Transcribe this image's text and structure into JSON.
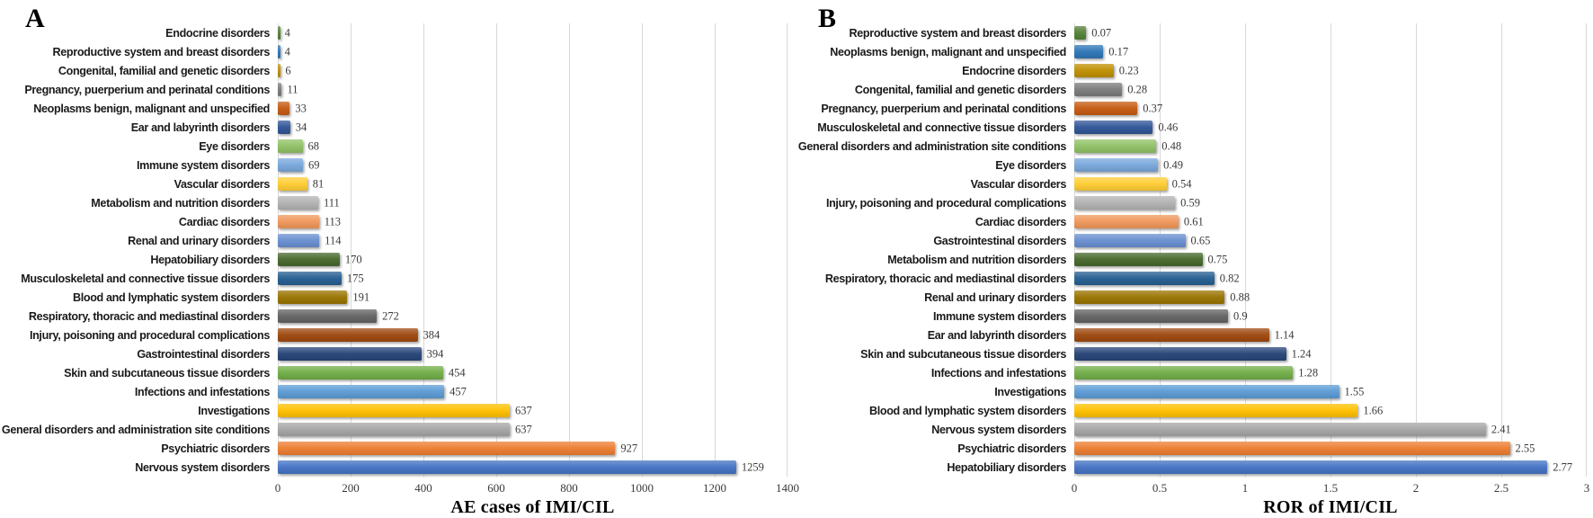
{
  "chart_data": [
    {
      "type": "bar",
      "orientation": "horizontal",
      "panel_letter": "A",
      "title": "",
      "xlabel": "AE cases of IMI/CIL",
      "ylabel": "",
      "xlim": [
        0,
        1400
      ],
      "xticks": [
        "0",
        "200",
        "400",
        "600",
        "800",
        "1000",
        "1200",
        "1400"
      ],
      "grid": "vertical",
      "legend": "none",
      "bars": [
        {
          "label": "Endocrine disorders",
          "value": 4,
          "value_label": "4",
          "color": "#538135"
        },
        {
          "label": "Reproductive system and breast disorders",
          "value": 4,
          "value_label": "4",
          "color": "#2E75B6"
        },
        {
          "label": "Congenital, familial and genetic disorders",
          "value": 6,
          "value_label": "6",
          "color": "#BF8F00"
        },
        {
          "label": "Pregnancy, puerperium and perinatal conditions",
          "value": 11,
          "value_label": "11",
          "color": "#7B7B7B"
        },
        {
          "label": "Neoplasms benign, malignant and unspecified",
          "value": 33,
          "value_label": "33",
          "color": "#C55A11"
        },
        {
          "label": "Ear and labyrinth disorders",
          "value": 34,
          "value_label": "34",
          "color": "#2F5597"
        },
        {
          "label": "Eye disorders",
          "value": 68,
          "value_label": "68",
          "color": "#8FC164"
        },
        {
          "label": "Immune system disorders",
          "value": 69,
          "value_label": "69",
          "color": "#78A7DB"
        },
        {
          "label": "Vascular disorders",
          "value": 81,
          "value_label": "81",
          "color": "#FFCD33"
        },
        {
          "label": "Metabolism and nutrition disorders",
          "value": 111,
          "value_label": "111",
          "color": "#B2B2B2"
        },
        {
          "label": "Cardiac disorders",
          "value": 113,
          "value_label": "113",
          "color": "#F0975A"
        },
        {
          "label": "Renal and urinary disorders",
          "value": 114,
          "value_label": "114",
          "color": "#698ED0"
        },
        {
          "label": "Hepatobiliary disorders",
          "value": 170,
          "value_label": "170",
          "color": "#47682C"
        },
        {
          "label": "Musculoskeletal and connective tissue disorders",
          "value": 175,
          "value_label": "175",
          "color": "#255E91"
        },
        {
          "label": "Blood and lymphatic system disorders",
          "value": 191,
          "value_label": "191",
          "color": "#997300"
        },
        {
          "label": "Respiratory, thoracic and mediastinal disorders",
          "value": 272,
          "value_label": "272",
          "color": "#636363"
        },
        {
          "label": "Injury, poisoning and procedural complications",
          "value": 384,
          "value_label": "384",
          "color": "#9E480E"
        },
        {
          "label": "Gastrointestinal disorders",
          "value": 394,
          "value_label": "394",
          "color": "#264478"
        },
        {
          "label": "Skin and subcutaneous tissue disorders",
          "value": 454,
          "value_label": "454",
          "color": "#70AD47"
        },
        {
          "label": "Infections and infestations",
          "value": 457,
          "value_label": "457",
          "color": "#5B9BD5"
        },
        {
          "label": "Investigations",
          "value": 637,
          "value_label": "637",
          "color": "#FFC000"
        },
        {
          "label": "General disorders and administration site conditions",
          "value": 637,
          "value_label": "637",
          "color": "#A5A5A5"
        },
        {
          "label": "Psychiatric disorders",
          "value": 927,
          "value_label": "927",
          "color": "#ED7D31"
        },
        {
          "label": "Nervous system disorders",
          "value": 1259,
          "value_label": "1259",
          "color": "#4472C4"
        }
      ]
    },
    {
      "type": "bar",
      "orientation": "horizontal",
      "panel_letter": "B",
      "title": "",
      "xlabel": "ROR of IMI/CIL",
      "ylabel": "",
      "xlim": [
        0,
        3
      ],
      "xticks": [
        "0",
        "0.5",
        "1",
        "1.5",
        "2",
        "2.5",
        "3"
      ],
      "grid": "vertical",
      "legend": "none",
      "bars": [
        {
          "label": "Reproductive system and breast disorders",
          "value": 0.07,
          "value_label": "0.07",
          "color": "#538135"
        },
        {
          "label": "Neoplasms benign, malignant and unspecified",
          "value": 0.17,
          "value_label": "0.17",
          "color": "#2E75B6"
        },
        {
          "label": "Endocrine disorders",
          "value": 0.23,
          "value_label": "0.23",
          "color": "#BF8F00"
        },
        {
          "label": "Congenital, familial and genetic disorders",
          "value": 0.28,
          "value_label": "0.28",
          "color": "#7B7B7B"
        },
        {
          "label": "Pregnancy, puerperium and perinatal conditions",
          "value": 0.37,
          "value_label": "0.37",
          "color": "#C55A11"
        },
        {
          "label": "Musculoskeletal and connective tissue disorders",
          "value": 0.46,
          "value_label": "0.46",
          "color": "#2F5597"
        },
        {
          "label": "General disorders and administration site conditions",
          "value": 0.48,
          "value_label": "0.48",
          "color": "#8FC164"
        },
        {
          "label": "Eye disorders",
          "value": 0.49,
          "value_label": "0.49",
          "color": "#78A7DB"
        },
        {
          "label": "Vascular disorders",
          "value": 0.54,
          "value_label": "0.54",
          "color": "#FFCD33"
        },
        {
          "label": "Injury, poisoning and procedural complications",
          "value": 0.59,
          "value_label": "0.59",
          "color": "#B2B2B2"
        },
        {
          "label": "Cardiac disorders",
          "value": 0.61,
          "value_label": "0.61",
          "color": "#F0975A"
        },
        {
          "label": "Gastrointestinal disorders",
          "value": 0.65,
          "value_label": "0.65",
          "color": "#698ED0"
        },
        {
          "label": "Metabolism and nutrition disorders",
          "value": 0.75,
          "value_label": "0.75",
          "color": "#47682C"
        },
        {
          "label": "Respiratory, thoracic and mediastinal disorders",
          "value": 0.82,
          "value_label": "0.82",
          "color": "#255E91"
        },
        {
          "label": "Renal and urinary disorders",
          "value": 0.88,
          "value_label": "0.88",
          "color": "#997300"
        },
        {
          "label": "Immune system disorders",
          "value": 0.9,
          "value_label": "0.9",
          "color": "#636363"
        },
        {
          "label": "Ear and labyrinth disorders",
          "value": 1.14,
          "value_label": "1.14",
          "color": "#9E480E"
        },
        {
          "label": "Skin and subcutaneous tissue disorders",
          "value": 1.24,
          "value_label": "1.24",
          "color": "#264478"
        },
        {
          "label": "Infections and infestations",
          "value": 1.28,
          "value_label": "1.28",
          "color": "#70AD47"
        },
        {
          "label": "Investigations",
          "value": 1.55,
          "value_label": "1.55",
          "color": "#5B9BD5"
        },
        {
          "label": "Blood and lymphatic system disorders",
          "value": 1.66,
          "value_label": "1.66",
          "color": "#FFC000"
        },
        {
          "label": "Nervous system disorders",
          "value": 2.41,
          "value_label": "2.41",
          "color": "#A5A5A5"
        },
        {
          "label": "Psychiatric disorders",
          "value": 2.55,
          "value_label": "2.55",
          "color": "#ED7D31"
        },
        {
          "label": "Hepatobiliary disorders",
          "value": 2.77,
          "value_label": "2.77",
          "color": "#4472C4"
        }
      ]
    }
  ],
  "style": {
    "gridline_color": "#d8d8d8",
    "value_label_color": "#3a3a3a",
    "category_label_color": "#1a1a1a",
    "background": "#ffffff"
  }
}
